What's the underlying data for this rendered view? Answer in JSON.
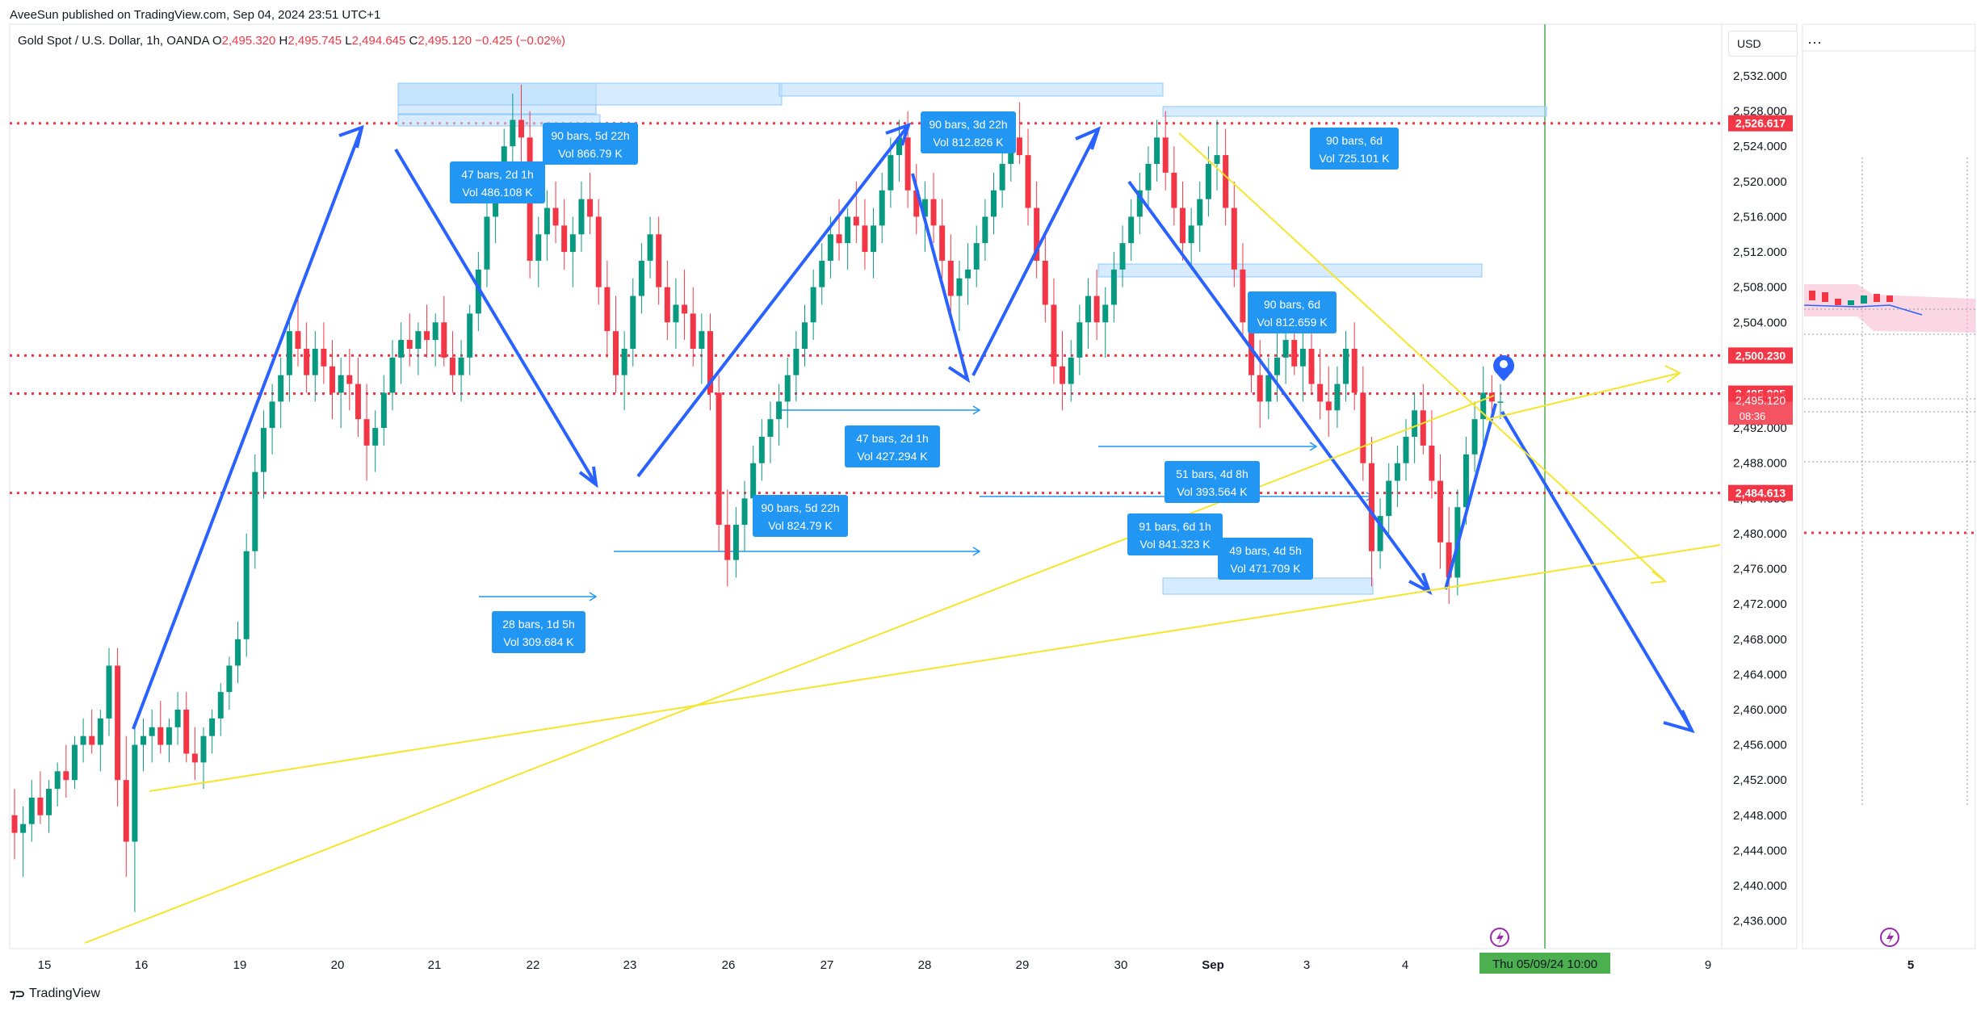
{
  "header": {
    "publisher": "AveeSun published on TradingView.com, Sep 04, 2024 23:51 UTC+1",
    "symbol": "Gold Spot / U.S. Dollar, 1h, OANDA",
    "o_label": "O",
    "o": "2,495.320",
    "h_label": "H",
    "h": "2,495.745",
    "l_label": "L",
    "l": "2,494.645",
    "c_label": "C",
    "c": "2,495.120",
    "change": "−0.425 (−0.02%)"
  },
  "toolbar": {
    "currency": "USD",
    "more": "···"
  },
  "footer": {
    "brand": "TradingView"
  },
  "chart_data": {
    "type": "candlestick",
    "y_axis": {
      "range": [
        2432.5,
        2535
      ],
      "ticks": [
        "2,532.000",
        "2,528.000",
        "2,524.000",
        "2,520.000",
        "2,516.000",
        "2,512.000",
        "2,508.000",
        "2,504.000",
        "2,500.000",
        "2,496.000",
        "2,492.000",
        "2,488.000",
        "2,484.000",
        "2,480.000",
        "2,476.000",
        "2,472.000",
        "2,468.000",
        "2,464.000",
        "2,460.000",
        "2,456.000",
        "2,452.000",
        "2,448.000",
        "2,444.000",
        "2,440.000",
        "2,436.000"
      ],
      "tick_values": [
        2532,
        2528,
        2524,
        2520,
        2516,
        2512,
        2508,
        2504,
        2500,
        2496,
        2492,
        2488,
        2484,
        2480,
        2476,
        2472,
        2468,
        2464,
        2460,
        2456,
        2452,
        2448,
        2444,
        2440,
        2436
      ]
    },
    "x_axis": {
      "ticks": [
        "15",
        "16",
        "19",
        "20",
        "21",
        "22",
        "23",
        "26",
        "27",
        "28",
        "29",
        "30",
        "Sep",
        "3",
        "4",
        "9"
      ],
      "tick_x": [
        55,
        175,
        297,
        418,
        538,
        660,
        780,
        902,
        1024,
        1145,
        1266,
        1388,
        1502,
        1618,
        1740,
        2115
      ],
      "cursor_label": "Thu 05/09/24   10:00"
    },
    "price_lines": [
      {
        "value": 2526.617,
        "label": "2,526.617",
        "color": "#f23645"
      },
      {
        "value": 2500.23,
        "label": "2,500.230",
        "color": "#f23645"
      },
      {
        "value": 2495.905,
        "label": "2,495.905",
        "color": "#f23645"
      },
      {
        "value": 2484.613,
        "label": "2,484.613",
        "color": "#f23645"
      }
    ],
    "last_price": {
      "value": 2495.12,
      "label": "2,495.120",
      "countdown": "08:36"
    },
    "measure_labels": [
      {
        "line1": "90 bars, 5d 22h",
        "line2": "Vol 866.79 K"
      },
      {
        "line1": "47 bars, 2d 1h",
        "line2": "Vol 486.108 K"
      },
      {
        "line1": "90 bars, 3d 22h",
        "line2": "Vol 812.826 K"
      },
      {
        "line1": "90 bars, 6d",
        "line2": "Vol 725.101 K"
      },
      {
        "line1": "90 bars, 6d",
        "line2": "Vol 812.659 K"
      },
      {
        "line1": "47 bars, 2d 1h",
        "line2": "Vol 427.294 K"
      },
      {
        "line1": "51 bars, 4d 8h",
        "line2": "Vol 393.564 K"
      },
      {
        "line1": "90 bars, 5d 22h",
        "line2": "Vol 824.79 K"
      },
      {
        "line1": "91 bars, 6d 1h",
        "line2": "Vol 841.323 K"
      },
      {
        "line1": "49 bars, 4d 5h",
        "line2": "Vol 471.709 K"
      },
      {
        "line1": "28 bars, 1d 5h",
        "line2": "Vol 309.684 K"
      }
    ],
    "candles": [
      [
        2448,
        2451,
        2443,
        2446
      ],
      [
        2446,
        2449,
        2441,
        2447
      ],
      [
        2447,
        2452,
        2445,
        2450
      ],
      [
        2450,
        2453,
        2447,
        2448
      ],
      [
        2448,
        2452,
        2446,
        2451
      ],
      [
        2451,
        2454,
        2449,
        2453
      ],
      [
        2453,
        2456,
        2450,
        2452
      ],
      [
        2452,
        2457,
        2451,
        2456
      ],
      [
        2456,
        2459,
        2454,
        2457
      ],
      [
        2457,
        2460,
        2455,
        2456
      ],
      [
        2456,
        2460,
        2453,
        2459
      ],
      [
        2459,
        2467,
        2457,
        2465
      ],
      [
        2465,
        2467,
        2449,
        2452
      ],
      [
        2452,
        2457,
        2441,
        2445
      ],
      [
        2445,
        2458,
        2437,
        2456
      ],
      [
        2456,
        2459,
        2453,
        2457
      ],
      [
        2457,
        2460,
        2454,
        2458
      ],
      [
        2458,
        2461,
        2455,
        2456
      ],
      [
        2456,
        2459,
        2454,
        2458
      ],
      [
        2458,
        2462,
        2456,
        2460
      ],
      [
        2460,
        2462,
        2454,
        2455
      ],
      [
        2455,
        2458,
        2452,
        2454
      ],
      [
        2454,
        2458,
        2451,
        2457
      ],
      [
        2457,
        2460,
        2455,
        2459
      ],
      [
        2459,
        2463,
        2457,
        2462
      ],
      [
        2462,
        2466,
        2460,
        2465
      ],
      [
        2465,
        2470,
        2463,
        2468
      ],
      [
        2468,
        2480,
        2466,
        2478
      ],
      [
        2478,
        2489,
        2476,
        2487
      ],
      [
        2487,
        2494,
        2484,
        2492
      ],
      [
        2492,
        2497,
        2489,
        2495
      ],
      [
        2495,
        2500,
        2492,
        2498
      ],
      [
        2498,
        2505,
        2495,
        2503
      ],
      [
        2503,
        2507,
        2499,
        2501
      ],
      [
        2501,
        2504,
        2496,
        2498
      ],
      [
        2498,
        2503,
        2495,
        2501
      ],
      [
        2501,
        2504,
        2497,
        2499
      ],
      [
        2499,
        2502,
        2493,
        2496
      ],
      [
        2496,
        2500,
        2492,
        2498
      ],
      [
        2498,
        2501,
        2494,
        2497
      ],
      [
        2497,
        2500,
        2491,
        2493
      ],
      [
        2493,
        2497,
        2486,
        2490
      ],
      [
        2490,
        2494,
        2487,
        2492
      ],
      [
        2492,
        2498,
        2490,
        2496
      ],
      [
        2496,
        2502,
        2494,
        2500
      ],
      [
        2500,
        2504,
        2497,
        2502
      ],
      [
        2502,
        2505,
        2499,
        2501
      ],
      [
        2501,
        2504,
        2498,
        2503
      ],
      [
        2503,
        2506,
        2500,
        2502
      ],
      [
        2502,
        2505,
        2499,
        2504
      ],
      [
        2504,
        2507,
        2499,
        2500
      ],
      [
        2500,
        2503,
        2496,
        2498
      ],
      [
        2498,
        2502,
        2495,
        2500
      ],
      [
        2500,
        2506,
        2498,
        2505
      ],
      [
        2505,
        2512,
        2503,
        2510
      ],
      [
        2510,
        2518,
        2508,
        2516
      ],
      [
        2516,
        2522,
        2513,
        2520
      ],
      [
        2520,
        2526,
        2518,
        2524
      ],
      [
        2524,
        2530,
        2521,
        2527
      ],
      [
        2527,
        2531,
        2522,
        2525
      ],
      [
        2525,
        2528,
        2509,
        2511
      ],
      [
        2511,
        2516,
        2508,
        2514
      ],
      [
        2514,
        2519,
        2511,
        2517
      ],
      [
        2517,
        2520,
        2513,
        2515
      ],
      [
        2515,
        2518,
        2510,
        2512
      ],
      [
        2512,
        2516,
        2508,
        2514
      ],
      [
        2514,
        2520,
        2512,
        2518
      ],
      [
        2518,
        2521,
        2514,
        2516
      ],
      [
        2516,
        2518,
        2506,
        2508
      ],
      [
        2508,
        2511,
        2500,
        2503
      ],
      [
        2503,
        2507,
        2496,
        2498
      ],
      [
        2498,
        2503,
        2494,
        2501
      ],
      [
        2501,
        2509,
        2499,
        2507
      ],
      [
        2507,
        2513,
        2505,
        2511
      ],
      [
        2511,
        2516,
        2509,
        2514
      ],
      [
        2514,
        2516,
        2506,
        2508
      ],
      [
        2508,
        2511,
        2502,
        2504
      ],
      [
        2504,
        2509,
        2501,
        2506
      ],
      [
        2506,
        2510,
        2502,
        2505
      ],
      [
        2505,
        2508,
        2499,
        2501
      ],
      [
        2501,
        2505,
        2497,
        2503
      ],
      [
        2503,
        2505,
        2494,
        2496
      ],
      [
        2496,
        2498,
        2478,
        2481
      ],
      [
        2481,
        2485,
        2474,
        2477
      ],
      [
        2477,
        2483,
        2475,
        2481
      ],
      [
        2481,
        2486,
        2478,
        2484
      ],
      [
        2484,
        2490,
        2482,
        2488
      ],
      [
        2488,
        2493,
        2486,
        2491
      ],
      [
        2491,
        2495,
        2488,
        2493
      ],
      [
        2493,
        2497,
        2490,
        2495
      ],
      [
        2495,
        2500,
        2492,
        2498
      ],
      [
        2498,
        2503,
        2495,
        2501
      ],
      [
        2501,
        2506,
        2499,
        2504
      ],
      [
        2504,
        2510,
        2502,
        2508
      ],
      [
        2508,
        2513,
        2506,
        2511
      ],
      [
        2511,
        2516,
        2509,
        2514
      ],
      [
        2514,
        2518,
        2511,
        2513
      ],
      [
        2513,
        2517,
        2510,
        2516
      ],
      [
        2516,
        2520,
        2513,
        2515
      ],
      [
        2515,
        2518,
        2510,
        2512
      ],
      [
        2512,
        2517,
        2509,
        2515
      ],
      [
        2515,
        2521,
        2513,
        2519
      ],
      [
        2519,
        2525,
        2517,
        2523
      ],
      [
        2523,
        2527,
        2520,
        2525
      ],
      [
        2525,
        2528,
        2517,
        2519
      ],
      [
        2519,
        2522,
        2514,
        2516
      ],
      [
        2516,
        2520,
        2512,
        2518
      ],
      [
        2518,
        2521,
        2513,
        2515
      ],
      [
        2515,
        2518,
        2509,
        2511
      ],
      [
        2511,
        2514,
        2505,
        2507
      ],
      [
        2507,
        2511,
        2503,
        2509
      ],
      [
        2509,
        2513,
        2506,
        2510
      ],
      [
        2510,
        2515,
        2508,
        2513
      ],
      [
        2513,
        2518,
        2511,
        2516
      ],
      [
        2516,
        2521,
        2514,
        2519
      ],
      [
        2519,
        2524,
        2517,
        2522
      ],
      [
        2522,
        2527,
        2520,
        2525
      ],
      [
        2525,
        2529,
        2522,
        2523
      ],
      [
        2523,
        2526,
        2515,
        2517
      ],
      [
        2517,
        2520,
        2509,
        2511
      ],
      [
        2511,
        2514,
        2504,
        2506
      ],
      [
        2506,
        2509,
        2497,
        2499
      ],
      [
        2499,
        2503,
        2494,
        2497
      ],
      [
        2497,
        2502,
        2495,
        2500
      ],
      [
        2500,
        2506,
        2498,
        2504
      ],
      [
        2504,
        2509,
        2501,
        2507
      ],
      [
        2507,
        2510,
        2502,
        2504
      ],
      [
        2504,
        2508,
        2500,
        2506
      ],
      [
        2506,
        2512,
        2504,
        2510
      ],
      [
        2510,
        2515,
        2508,
        2513
      ],
      [
        2513,
        2518,
        2511,
        2516
      ],
      [
        2516,
        2521,
        2514,
        2519
      ],
      [
        2519,
        2524,
        2517,
        2522
      ],
      [
        2522,
        2527,
        2520,
        2525
      ],
      [
        2525,
        2528,
        2519,
        2521
      ],
      [
        2521,
        2524,
        2515,
        2517
      ],
      [
        2517,
        2520,
        2511,
        2513
      ],
      [
        2513,
        2517,
        2510,
        2515
      ],
      [
        2515,
        2520,
        2512,
        2518
      ],
      [
        2518,
        2524,
        2516,
        2522
      ],
      [
        2522,
        2527,
        2519,
        2523
      ],
      [
        2523,
        2526,
        2515,
        2517
      ],
      [
        2517,
        2520,
        2508,
        2510
      ],
      [
        2510,
        2513,
        2502,
        2504
      ],
      [
        2504,
        2507,
        2496,
        2498
      ],
      [
        2498,
        2502,
        2492,
        2495
      ],
      [
        2495,
        2500,
        2493,
        2498
      ],
      [
        2498,
        2503,
        2495,
        2500
      ],
      [
        2500,
        2505,
        2497,
        2502
      ],
      [
        2502,
        2506,
        2498,
        2499
      ],
      [
        2499,
        2503,
        2495,
        2501
      ],
      [
        2501,
        2504,
        2496,
        2497
      ],
      [
        2497,
        2501,
        2493,
        2495
      ],
      [
        2495,
        2499,
        2491,
        2494
      ],
      [
        2494,
        2499,
        2492,
        2497
      ],
      [
        2497,
        2503,
        2495,
        2501
      ],
      [
        2501,
        2504,
        2494,
        2496
      ],
      [
        2496,
        2499,
        2486,
        2488
      ],
      [
        2488,
        2491,
        2474,
        2478
      ],
      [
        2478,
        2484,
        2476,
        2482
      ],
      [
        2482,
        2488,
        2480,
        2486
      ],
      [
        2486,
        2490,
        2483,
        2488
      ],
      [
        2488,
        2493,
        2486,
        2491
      ],
      [
        2491,
        2496,
        2488,
        2494
      ],
      [
        2494,
        2497,
        2489,
        2490
      ],
      [
        2490,
        2494,
        2484,
        2486
      ],
      [
        2486,
        2489,
        2476,
        2479
      ],
      [
        2479,
        2483,
        2472,
        2475
      ],
      [
        2475,
        2485,
        2473,
        2483
      ],
      [
        2483,
        2491,
        2481,
        2489
      ],
      [
        2489,
        2495,
        2487,
        2493
      ],
      [
        2493,
        2499,
        2490,
        2496
      ],
      [
        2496,
        2498,
        2493,
        2495
      ],
      [
        2495,
        2497,
        2493,
        2495
      ]
    ]
  }
}
